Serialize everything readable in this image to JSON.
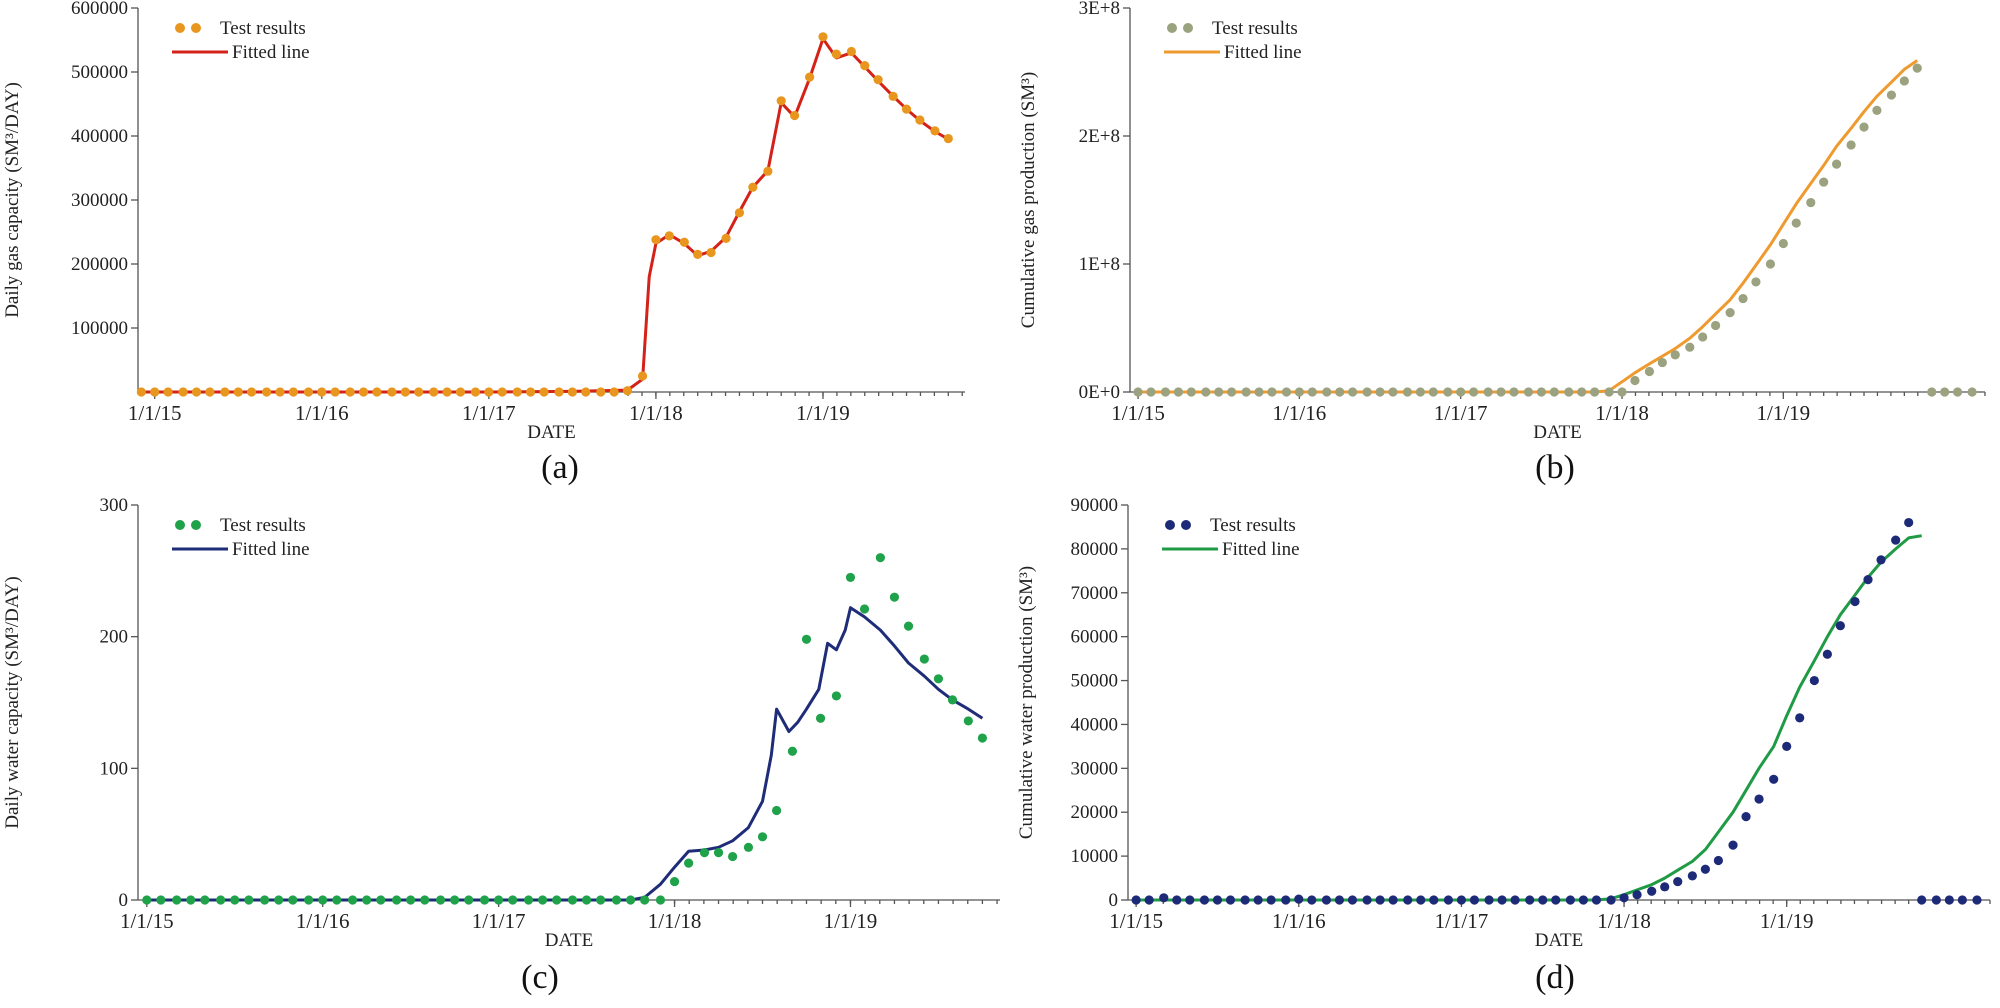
{
  "chart_data": [
    {
      "panel": "a",
      "type": "line",
      "panel_label": "(a)",
      "xlabel": "DATE",
      "ylabel": "Daily gas capacity  (SM³/DAY)",
      "xlim": [
        2014.9,
        2019.85
      ],
      "ylim": [
        0,
        600000
      ],
      "yticks": [
        100000,
        200000,
        300000,
        400000,
        500000,
        600000
      ],
      "ytick_labels": [
        "100000",
        "200000",
        "300000",
        "400000",
        "500000",
        "600000"
      ],
      "xticks": [
        2015,
        2016,
        2017,
        2018,
        2019
      ],
      "xtick_labels": [
        "1/1/15",
        "1/1/16",
        "1/1/17",
        "1/1/18",
        "1/1/19"
      ],
      "legend": {
        "position": "top-left",
        "marker_label": "Test results",
        "line_label": "Fitted line"
      },
      "marker_color": "#e8961e",
      "line_color": "#d42218",
      "series": [
        {
          "name": "Test results",
          "style": "markers",
          "x": [
            2014.92,
            2015.0,
            2015.08,
            2015.17,
            2015.25,
            2015.33,
            2015.42,
            2015.5,
            2015.58,
            2015.67,
            2015.75,
            2015.83,
            2015.92,
            2016.0,
            2016.08,
            2016.17,
            2016.25,
            2016.33,
            2016.42,
            2016.5,
            2016.58,
            2016.67,
            2016.75,
            2016.83,
            2016.92,
            2017.0,
            2017.08,
            2017.17,
            2017.25,
            2017.33,
            2017.42,
            2017.5,
            2017.58,
            2017.67,
            2017.75,
            2017.83,
            2017.92,
            2018.0,
            2018.08,
            2018.17,
            2018.25,
            2018.33,
            2018.42,
            2018.5,
            2018.58,
            2018.67,
            2018.75,
            2018.83,
            2018.92,
            2019.0,
            2019.08,
            2019.17,
            2019.25,
            2019.33,
            2019.42,
            2019.5,
            2019.58,
            2019.67,
            2019.75
          ],
          "y": [
            0,
            0,
            0,
            0,
            0,
            0,
            0,
            0,
            0,
            0,
            0,
            0,
            0,
            0,
            0,
            0,
            0,
            0,
            0,
            0,
            0,
            0,
            0,
            0,
            0,
            0,
            0,
            0,
            0,
            0,
            0,
            0,
            0,
            0,
            0,
            2000,
            25000,
            238000,
            244000,
            234000,
            215000,
            218000,
            240000,
            280000,
            320000,
            345000,
            455000,
            432000,
            492000,
            555000,
            528000,
            532000,
            510000,
            488000,
            462000,
            442000,
            425000,
            408000,
            396000
          ]
        },
        {
          "name": "Fitted line",
          "style": "line",
          "x": [
            2014.92,
            2015.5,
            2016.0,
            2016.5,
            2017.0,
            2017.5,
            2017.83,
            2017.92,
            2017.96,
            2018.0,
            2018.08,
            2018.17,
            2018.25,
            2018.33,
            2018.42,
            2018.5,
            2018.58,
            2018.67,
            2018.75,
            2018.83,
            2018.92,
            2019.0,
            2019.08,
            2019.17,
            2019.25,
            2019.33,
            2019.42,
            2019.5,
            2019.58,
            2019.67,
            2019.75
          ],
          "y": [
            0,
            0,
            0,
            0,
            0,
            1000,
            3000,
            20000,
            180000,
            232000,
            246000,
            232000,
            213000,
            220000,
            242000,
            282000,
            320000,
            346000,
            452000,
            430000,
            490000,
            552000,
            522000,
            530000,
            508000,
            486000,
            462000,
            442000,
            424000,
            407000,
            395000
          ]
        }
      ]
    },
    {
      "panel": "b",
      "type": "line",
      "panel_label": "(b)",
      "xlabel": "DATE",
      "ylabel": "Cumulative gas production  (SM³)",
      "xlim": [
        2014.95,
        2020.25
      ],
      "ylim": [
        0,
        300000000
      ],
      "yticks": [
        0,
        100000000,
        200000000,
        300000000
      ],
      "ytick_labels": [
        "0E+0",
        "1E+8",
        "2E+8",
        "3E+8"
      ],
      "xticks": [
        2015,
        2016,
        2017,
        2018,
        2019
      ],
      "xtick_labels": [
        "1/1/15",
        "1/1/16",
        "1/1/17",
        "1/1/18",
        "1/1/19"
      ],
      "legend": {
        "position": "top-left",
        "marker_label": "Test results",
        "line_label": "Fitted line"
      },
      "marker_color": "#9aa27f",
      "line_color": "#ef9a2e",
      "series": [
        {
          "name": "Test results",
          "style": "markers",
          "x": [
            2015.0,
            2015.08,
            2015.17,
            2015.25,
            2015.33,
            2015.42,
            2015.5,
            2015.58,
            2015.67,
            2015.75,
            2015.83,
            2015.92,
            2016.0,
            2016.08,
            2016.17,
            2016.25,
            2016.33,
            2016.42,
            2016.5,
            2016.58,
            2016.67,
            2016.75,
            2016.83,
            2016.92,
            2017.0,
            2017.08,
            2017.17,
            2017.25,
            2017.33,
            2017.42,
            2017.5,
            2017.58,
            2017.67,
            2017.75,
            2017.83,
            2017.92,
            2018.0,
            2018.08,
            2018.17,
            2018.25,
            2018.33,
            2018.42,
            2018.5,
            2018.58,
            2018.67,
            2018.75,
            2018.83,
            2018.92,
            2019.0,
            2019.08,
            2019.17,
            2019.25,
            2019.33,
            2019.42,
            2019.5,
            2019.58,
            2019.67,
            2019.75,
            2019.83,
            2019.92,
            2020.0,
            2020.08,
            2020.17
          ],
          "y": [
            0,
            0,
            0,
            0,
            0,
            0,
            0,
            0,
            0,
            0,
            0,
            0,
            0,
            0,
            0,
            0,
            0,
            0,
            0,
            0,
            0,
            0,
            0,
            0,
            0,
            0,
            0,
            0,
            0,
            0,
            0,
            0,
            0,
            0,
            0,
            0,
            0,
            9000000,
            16000000,
            23000000,
            29000000,
            35000000,
            43000000,
            52000000,
            62000000,
            73000000,
            86000000,
            100000000,
            116000000,
            132000000,
            148000000,
            164000000,
            178000000,
            193000000,
            207000000,
            220000000,
            232000000,
            243000000,
            253000000,
            0,
            0,
            0,
            0
          ]
        },
        {
          "name": "Fitted line",
          "style": "line",
          "x": [
            2015.0,
            2016.0,
            2017.0,
            2017.5,
            2017.75,
            2017.83,
            2017.92,
            2018.0,
            2018.08,
            2018.17,
            2018.25,
            2018.33,
            2018.42,
            2018.5,
            2018.58,
            2018.67,
            2018.75,
            2018.83,
            2018.92,
            2019.0,
            2019.08,
            2019.17,
            2019.25,
            2019.33,
            2019.42,
            2019.5,
            2019.58,
            2019.67,
            2019.75,
            2019.83
          ],
          "y": [
            0,
            0,
            0,
            0,
            0,
            0,
            1000000,
            8000000,
            15000000,
            22000000,
            28000000,
            34000000,
            42000000,
            51000000,
            61000000,
            72000000,
            85000000,
            99000000,
            115000000,
            131000000,
            147000000,
            163000000,
            177000000,
            192000000,
            206000000,
            219000000,
            231000000,
            242000000,
            252000000,
            259000000
          ]
        }
      ]
    },
    {
      "panel": "c",
      "type": "line",
      "panel_label": "(c)",
      "xlabel": "DATE",
      "ylabel": "Daily water capacity  (SM³/DAY)",
      "xlim": [
        2014.95,
        2019.85
      ],
      "ylim": [
        0,
        300
      ],
      "yticks": [
        0,
        100,
        200,
        300
      ],
      "ytick_labels": [
        "0",
        "100",
        "200",
        "300"
      ],
      "xticks": [
        2015,
        2016,
        2017,
        2018,
        2019
      ],
      "xtick_labels": [
        "1/1/15",
        "1/1/16",
        "1/1/17",
        "1/1/18",
        "1/1/19"
      ],
      "legend": {
        "position": "top-left",
        "marker_label": "Test results",
        "line_label": "Fitted line"
      },
      "marker_color": "#1fa24a",
      "line_color": "#1f2c78",
      "series": [
        {
          "name": "Test results",
          "style": "markers",
          "x": [
            2015.0,
            2015.08,
            2015.17,
            2015.25,
            2015.33,
            2015.42,
            2015.5,
            2015.58,
            2015.67,
            2015.75,
            2015.83,
            2015.92,
            2016.0,
            2016.08,
            2016.17,
            2016.25,
            2016.33,
            2016.42,
            2016.5,
            2016.58,
            2016.67,
            2016.75,
            2016.83,
            2016.92,
            2017.0,
            2017.08,
            2017.17,
            2017.25,
            2017.33,
            2017.42,
            2017.5,
            2017.58,
            2017.67,
            2017.75,
            2017.83,
            2017.92,
            2018.0,
            2018.08,
            2018.17,
            2018.25,
            2018.33,
            2018.42,
            2018.5,
            2018.58,
            2018.67,
            2018.75,
            2018.83,
            2018.92,
            2019.0,
            2019.08,
            2019.17,
            2019.25,
            2019.33,
            2019.42,
            2019.5,
            2019.58,
            2019.67,
            2019.75
          ],
          "y": [
            0,
            0,
            0,
            0,
            0,
            0,
            0,
            0,
            0,
            0,
            0,
            0,
            0,
            0,
            0,
            0,
            0,
            0,
            0,
            0,
            0,
            0,
            0,
            0,
            0,
            0,
            0,
            0,
            0,
            0,
            0,
            0,
            0,
            0,
            0,
            0,
            14,
            28,
            36,
            36,
            33,
            40,
            48,
            68,
            113,
            198,
            138,
            155,
            245,
            221,
            260,
            230,
            208,
            183,
            168,
            152,
            136,
            123
          ]
        },
        {
          "name": "Fitted line",
          "style": "line",
          "x": [
            2015.0,
            2016.0,
            2017.0,
            2017.5,
            2017.75,
            2017.83,
            2017.92,
            2018.0,
            2018.08,
            2018.17,
            2018.25,
            2018.33,
            2018.42,
            2018.5,
            2018.55,
            2018.58,
            2018.65,
            2018.7,
            2018.75,
            2018.82,
            2018.87,
            2018.92,
            2018.97,
            2019.0,
            2019.08,
            2019.17,
            2019.25,
            2019.33,
            2019.42,
            2019.5,
            2019.58,
            2019.67,
            2019.75
          ],
          "y": [
            0,
            0,
            0,
            0,
            0,
            2,
            12,
            25,
            37,
            38,
            40,
            45,
            55,
            75,
            110,
            145,
            128,
            135,
            145,
            160,
            195,
            190,
            205,
            222,
            215,
            205,
            193,
            180,
            170,
            160,
            152,
            145,
            138
          ]
        }
      ]
    },
    {
      "panel": "d",
      "type": "line",
      "panel_label": "(d)",
      "xlabel": "DATE",
      "ylabel": "Cumulative water production  (SM³)",
      "xlim": [
        2014.95,
        2020.25
      ],
      "ylim": [
        0,
        90000
      ],
      "yticks": [
        0,
        10000,
        20000,
        30000,
        40000,
        50000,
        60000,
        70000,
        80000,
        90000
      ],
      "ytick_labels": [
        "0",
        "10000",
        "20000",
        "30000",
        "40000",
        "50000",
        "60000",
        "70000",
        "80000",
        "90000"
      ],
      "xticks": [
        2015,
        2016,
        2017,
        2018,
        2019
      ],
      "xtick_labels": [
        "1/1/15",
        "1/1/16",
        "1/1/17",
        "1/1/18",
        "1/1/19"
      ],
      "legend": {
        "position": "top-left",
        "marker_label": "Test results",
        "line_label": "Fitted line"
      },
      "marker_color": "#1d2a78",
      "line_color": "#1f9a45",
      "series": [
        {
          "name": "Test results",
          "style": "markers",
          "x": [
            2015.0,
            2015.08,
            2015.17,
            2015.25,
            2015.33,
            2015.42,
            2015.5,
            2015.58,
            2015.67,
            2015.75,
            2015.83,
            2015.92,
            2016.0,
            2016.08,
            2016.17,
            2016.25,
            2016.33,
            2016.42,
            2016.5,
            2016.58,
            2016.67,
            2016.75,
            2016.83,
            2016.92,
            2017.0,
            2017.08,
            2017.17,
            2017.25,
            2017.33,
            2017.42,
            2017.5,
            2017.58,
            2017.67,
            2017.75,
            2017.83,
            2017.92,
            2018.0,
            2018.08,
            2018.17,
            2018.25,
            2018.33,
            2018.42,
            2018.5,
            2018.58,
            2018.67,
            2018.75,
            2018.83,
            2018.92,
            2019.0,
            2019.08,
            2019.17,
            2019.25,
            2019.33,
            2019.42,
            2019.5,
            2019.58,
            2019.67,
            2019.75,
            2019.83,
            2019.92,
            2020.0,
            2020.08,
            2020.17
          ],
          "y": [
            0,
            0,
            500,
            0,
            0,
            0,
            0,
            0,
            0,
            0,
            0,
            0,
            200,
            0,
            0,
            0,
            0,
            0,
            0,
            0,
            0,
            0,
            0,
            0,
            0,
            0,
            0,
            0,
            0,
            0,
            0,
            0,
            0,
            0,
            0,
            0,
            500,
            1200,
            2000,
            3000,
            4200,
            5500,
            7000,
            9000,
            12500,
            19000,
            23000,
            27500,
            35000,
            41500,
            50000,
            56000,
            62500,
            68000,
            73000,
            77500,
            82000,
            86000,
            0,
            0,
            0,
            0,
            0
          ]
        },
        {
          "name": "Fitted line",
          "style": "line",
          "x": [
            2015.0,
            2016.0,
            2017.0,
            2017.5,
            2017.83,
            2017.92,
            2018.0,
            2018.08,
            2018.17,
            2018.25,
            2018.33,
            2018.42,
            2018.5,
            2018.58,
            2018.67,
            2018.75,
            2018.83,
            2018.92,
            2019.0,
            2019.08,
            2019.17,
            2019.25,
            2019.33,
            2019.42,
            2019.5,
            2019.58,
            2019.67,
            2019.75,
            2019.83
          ],
          "y": [
            0,
            0,
            0,
            0,
            0,
            300,
            1200,
            2300,
            3500,
            5000,
            6800,
            8800,
            11500,
            15500,
            20000,
            25000,
            30000,
            35000,
            42000,
            48500,
            54500,
            60000,
            65000,
            69500,
            73500,
            77000,
            80000,
            82500,
            83000
          ]
        }
      ]
    }
  ],
  "figure": {
    "panels": [
      "a",
      "b",
      "c",
      "d"
    ]
  }
}
